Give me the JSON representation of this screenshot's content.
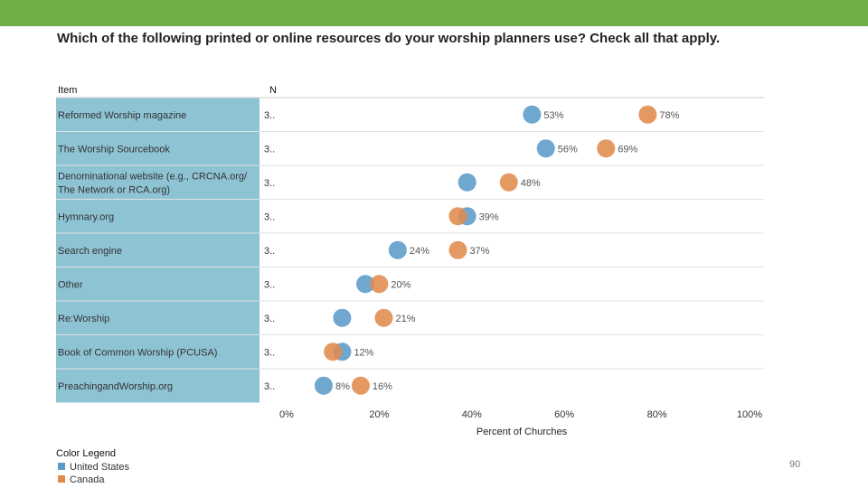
{
  "title": "Which of the following printed or online resources do your worship planners use? Check all that apply.",
  "page_number": "90",
  "colors": {
    "top_bar": "#6fad45",
    "item_band": "#8ec3d4",
    "united_states": "#5b9bc8",
    "canada": "#e08b4c"
  },
  "legend": {
    "title": "Color Legend",
    "items": [
      {
        "label": "United States",
        "color": "#5b9bc8"
      },
      {
        "label": "Canada",
        "color": "#e08b4c"
      }
    ]
  },
  "chart_data": {
    "type": "scatter",
    "column_headers": {
      "item": "Item",
      "n": "N"
    },
    "categories": [
      "Reformed Worship magazine",
      "The Worship Sourcebook",
      "Denominational website (e.g., CRCNA.org/ The Network or RCA.org)",
      "Hymnary.org",
      "Search engine",
      "Other",
      "Re:Worship",
      "Book of Common Worship (PCUSA)",
      "PreachingandWorship.org"
    ],
    "n_values": [
      "3..",
      "3..",
      "3..",
      "3..",
      "3..",
      "3..",
      "3..",
      "3..",
      "3.."
    ],
    "series": [
      {
        "name": "United States",
        "color": "#5b9bc8",
        "values": [
          53,
          56,
          39,
          39,
          24,
          17,
          12,
          12,
          8
        ],
        "labels": [
          "53%",
          "56%",
          "",
          "39%",
          "24%",
          "",
          "",
          "12%",
          "8%"
        ]
      },
      {
        "name": "Canada",
        "color": "#e08b4c",
        "values": [
          78,
          69,
          48,
          37,
          37,
          20,
          21,
          10,
          16
        ],
        "labels": [
          "78%",
          "69%",
          "48%",
          "",
          "37%",
          "20%",
          "21%",
          "",
          "16%"
        ]
      }
    ],
    "xlabel": "Percent of Churches",
    "xlim": [
      0,
      100
    ],
    "xticks": [
      "0%",
      "20%",
      "40%",
      "60%",
      "80%",
      "100%"
    ],
    "legend_position": "bottom-left"
  }
}
